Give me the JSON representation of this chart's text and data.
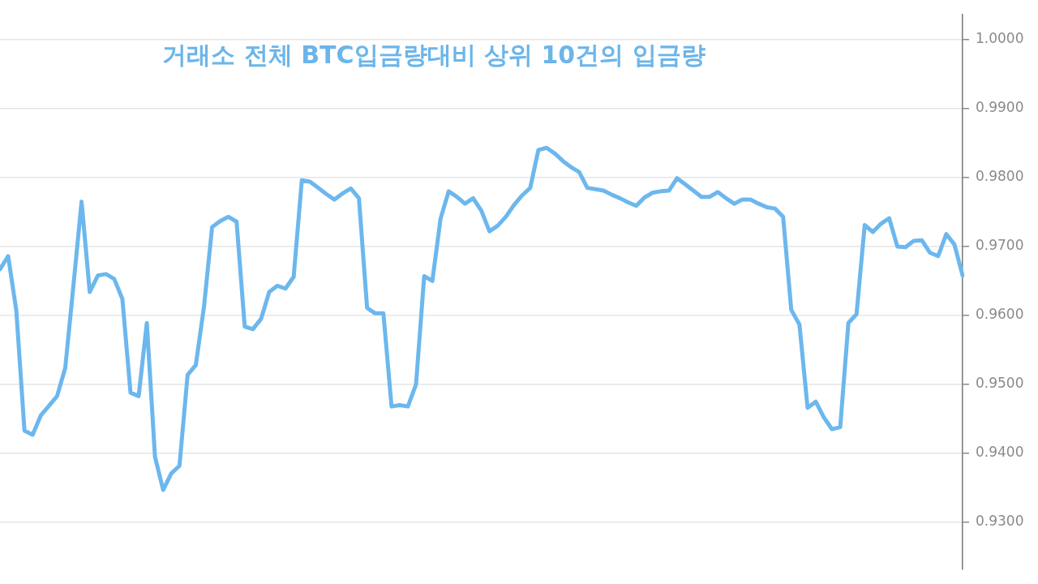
{
  "chart_data": {
    "type": "line",
    "title": "거래소 전체 BTC입금량대비 상위 10건의 입금량",
    "categories": [
      null,
      null,
      null,
      null,
      null,
      null,
      null,
      null,
      null,
      null,
      null,
      null,
      null,
      null,
      null,
      null,
      null,
      null,
      null,
      null,
      null,
      null,
      null,
      null,
      null,
      null,
      null,
      null,
      null,
      null,
      null,
      null,
      null,
      null,
      null,
      null,
      null,
      null,
      null,
      null,
      null,
      null,
      null,
      null,
      null,
      null,
      null,
      null,
      null,
      null,
      null,
      null,
      null,
      null,
      null,
      null,
      null,
      null,
      null,
      null,
      null,
      null,
      null,
      null,
      null,
      null,
      null,
      null,
      null,
      null,
      null,
      null,
      null,
      null,
      null,
      null,
      null,
      null,
      null,
      null,
      null,
      null,
      null,
      null,
      null,
      null,
      null,
      null,
      null,
      null,
      null,
      null,
      null,
      null,
      null,
      null,
      null,
      null,
      null,
      null,
      null,
      null,
      null,
      null,
      null,
      null,
      null,
      null,
      null,
      null,
      null,
      null,
      null,
      null,
      null,
      null,
      null,
      null,
      null
    ],
    "series": [
      {
        "color": "#6cb7ee",
        "values": [
          0.9667,
          0.9686,
          0.9607,
          0.9433,
          0.9427,
          0.9455,
          0.9469,
          0.9483,
          0.9524,
          0.9643,
          0.9765,
          0.9634,
          0.9658,
          0.966,
          0.9653,
          0.9624,
          0.9488,
          0.9483,
          0.9589,
          0.9395,
          0.9347,
          0.9371,
          0.9382,
          0.9514,
          0.9528,
          0.9612,
          0.9728,
          0.9737,
          0.9743,
          0.9736,
          0.9584,
          0.958,
          0.9595,
          0.9634,
          0.9643,
          0.9639,
          0.9656,
          0.9796,
          0.9794,
          0.9785,
          0.9776,
          0.9768,
          0.9777,
          0.9784,
          0.977,
          0.9611,
          0.9603,
          0.9603,
          0.9468,
          0.947,
          0.9468,
          0.95,
          0.9657,
          0.965,
          0.974,
          0.978,
          0.9772,
          0.9762,
          0.977,
          0.9752,
          0.9722,
          0.973,
          0.9743,
          0.976,
          0.9774,
          0.9785,
          0.984,
          0.9843,
          0.9835,
          0.9824,
          0.9815,
          0.9808,
          0.9785,
          0.9783,
          0.9781,
          0.9775,
          0.977,
          0.9764,
          0.9759,
          0.9771,
          0.9778,
          0.978,
          0.9781,
          0.9799,
          0.979,
          0.9781,
          0.9772,
          0.9772,
          0.9779,
          0.977,
          0.9762,
          0.9768,
          0.9768,
          0.9762,
          0.9757,
          0.9755,
          0.9743,
          0.9608,
          0.9587,
          0.9466,
          0.9475,
          0.9452,
          0.9435,
          0.9438,
          0.9589,
          0.9602,
          0.9731,
          0.9721,
          0.9733,
          0.9741,
          0.97,
          0.9699,
          0.9708,
          0.9709,
          0.9691,
          0.9686,
          0.9718,
          0.9703,
          0.9658
        ]
      }
    ],
    "ylim": [
      0.9232,
      1.0036
    ],
    "yticks": [
      {
        "value": 0.93,
        "label": "0.9300"
      },
      {
        "value": 0.94,
        "label": "0.9400"
      },
      {
        "value": 0.95,
        "label": "0.9500"
      },
      {
        "value": 0.96,
        "label": "0.9600"
      },
      {
        "value": 0.97,
        "label": "0.9700"
      },
      {
        "value": 0.98,
        "label": "0.9800"
      },
      {
        "value": 0.99,
        "label": "0.9900"
      },
      {
        "value": 1.0,
        "label": "1.0000"
      }
    ],
    "grid": "y",
    "tick_labels": "y"
  }
}
